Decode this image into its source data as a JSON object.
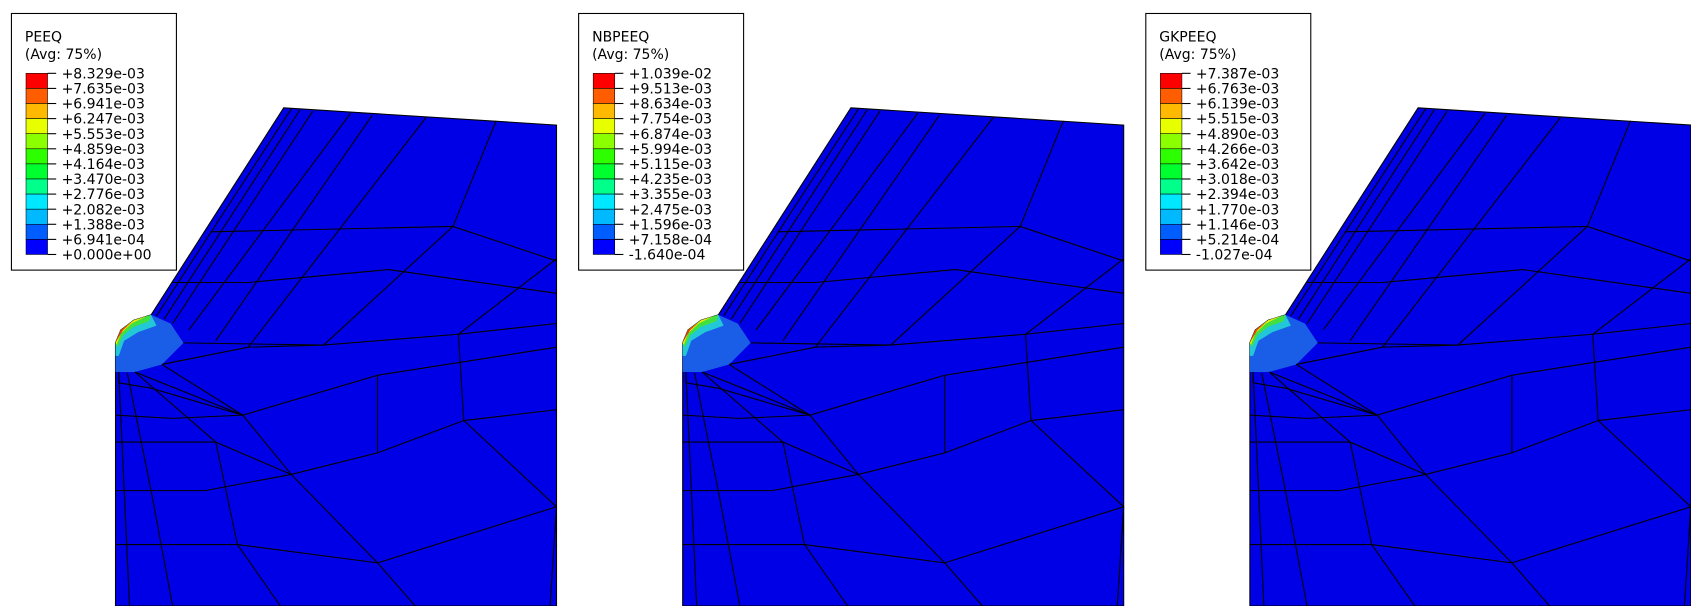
{
  "panels": [
    {
      "title": "PEEQ",
      "subtitle": "(Avg: 75%)",
      "labels": [
        "+8.329e-03",
        "+7.635e-03",
        "+6.941e-03",
        "+6.247e-03",
        "+5.553e-03",
        "+4.859e-03",
        "+4.164e-03",
        "+3.470e-03",
        "+2.776e-03",
        "+2.082e-03",
        "+1.388e-03",
        "+6.941e-04",
        "+0.000e+00"
      ]
    },
    {
      "title": "NBPEEQ",
      "subtitle": "(Avg: 75%)",
      "labels": [
        "+1.039e-02",
        "+9.513e-03",
        "+8.634e-03",
        "+7.754e-03",
        "+6.874e-03",
        "+5.994e-03",
        "+5.115e-03",
        "+4.235e-03",
        "+3.355e-03",
        "+2.475e-03",
        "+1.596e-03",
        "+7.158e-04",
        "-1.640e-04"
      ]
    },
    {
      "title": "GKPEEQ",
      "subtitle": "(Avg: 75%)",
      "labels": [
        "+7.387e-03",
        "+6.763e-03",
        "+6.139e-03",
        "+5.515e-03",
        "+4.890e-03",
        "+4.266e-03",
        "+3.642e-03",
        "+3.018e-03",
        "+2.394e-03",
        "+1.770e-03",
        "+1.146e-03",
        "+5.214e-04",
        "-1.027e-04"
      ]
    }
  ]
}
